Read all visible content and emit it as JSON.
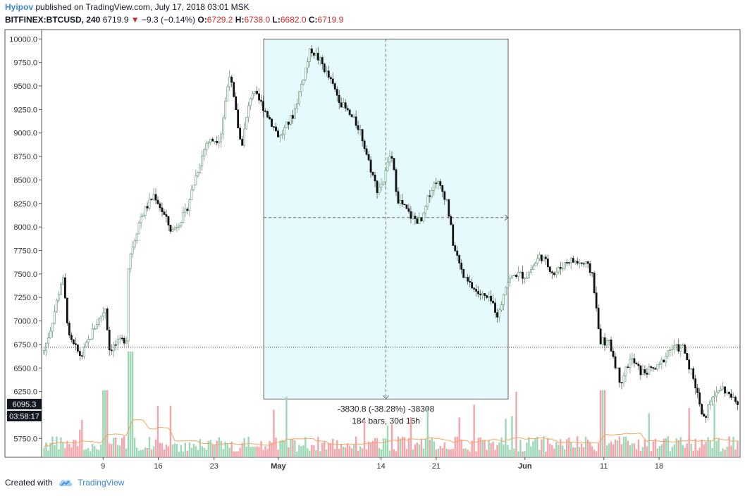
{
  "header": {
    "author": "Hyipov",
    "published_text": "published on TradingView.com, July 17, 2018 03:01 MSK",
    "symbol": "BITFINEX:BTCUSD, 240",
    "last": "6719.9",
    "change_arrow": "▼",
    "change": "−9.3 (−0.14%)",
    "o_label": "O:",
    "o_value": "6729.2",
    "h_label": "H:",
    "h_value": "6738.0",
    "l_label": "L:",
    "l_value": "6682.0",
    "c_label": "C:",
    "c_value": "6719.9"
  },
  "footer": {
    "created_with": "Created with",
    "brand": "TradingView",
    "brand_icon": "tradingview-cloud-icon"
  },
  "colors": {
    "up": "#5a9a6e",
    "down": "#111111",
    "vol_up": "#9ed7b5",
    "vol_down": "#f3a5ab",
    "ma": "#f5a45d",
    "measure_fill": "#e6fafd",
    "axis": "#555555"
  },
  "chart_data": {
    "type": "candlestick",
    "y_range": [
      5550,
      10100
    ],
    "y_ticks": [
      "10000.0",
      "9750.0",
      "9500.0",
      "9250.0",
      "9000.0",
      "8750.0",
      "8500.0",
      "8250.0",
      "8000.0",
      "7750.0",
      "7500.0",
      "7250.0",
      "7000.0",
      "6750.0",
      "6500.0",
      "6250.0",
      "5750.0"
    ],
    "x_ticks": [
      {
        "label": "9",
        "bold": false,
        "pos": 0.088
      },
      {
        "label": "16",
        "bold": false,
        "pos": 0.167
      },
      {
        "label": "23",
        "bold": false,
        "pos": 0.247
      },
      {
        "label": "May",
        "bold": true,
        "pos": 0.339
      },
      {
        "label": "14",
        "bold": false,
        "pos": 0.486
      },
      {
        "label": "21",
        "bold": false,
        "pos": 0.565
      },
      {
        "label": "Jun",
        "bold": true,
        "pos": 0.692
      },
      {
        "label": "11",
        "bold": false,
        "pos": 0.805
      },
      {
        "label": "18",
        "bold": false,
        "pos": 0.884
      }
    ],
    "price_path": [
      [
        0.0,
        6650
      ],
      [
        0.012,
        6950
      ],
      [
        0.028,
        7480
      ],
      [
        0.038,
        6800
      ],
      [
        0.055,
        6620
      ],
      [
        0.075,
        6950
      ],
      [
        0.09,
        7150
      ],
      [
        0.095,
        6700
      ],
      [
        0.12,
        6820
      ],
      [
        0.123,
        7650
      ],
      [
        0.14,
        8100
      ],
      [
        0.16,
        8350
      ],
      [
        0.185,
        7950
      ],
      [
        0.205,
        8150
      ],
      [
        0.22,
        8550
      ],
      [
        0.235,
        8900
      ],
      [
        0.255,
        8950
      ],
      [
        0.268,
        9650
      ],
      [
        0.285,
        8850
      ],
      [
        0.3,
        9450
      ],
      [
        0.315,
        9300
      ],
      [
        0.34,
        8950
      ],
      [
        0.36,
        9200
      ],
      [
        0.385,
        9900
      ],
      [
        0.4,
        9750
      ],
      [
        0.43,
        9300
      ],
      [
        0.455,
        9050
      ],
      [
        0.47,
        8650
      ],
      [
        0.48,
        8400
      ],
      [
        0.49,
        8500
      ],
      [
        0.5,
        8800
      ],
      [
        0.51,
        8300
      ],
      [
        0.53,
        8100
      ],
      [
        0.545,
        8050
      ],
      [
        0.555,
        8350
      ],
      [
        0.565,
        8500
      ],
      [
        0.58,
        8300
      ],
      [
        0.59,
        7800
      ],
      [
        0.605,
        7450
      ],
      [
        0.625,
        7300
      ],
      [
        0.645,
        7200
      ],
      [
        0.655,
        7050
      ],
      [
        0.665,
        7400
      ],
      [
        0.68,
        7500
      ],
      [
        0.695,
        7480
      ],
      [
        0.715,
        7700
      ],
      [
        0.735,
        7500
      ],
      [
        0.755,
        7650
      ],
      [
        0.78,
        7600
      ],
      [
        0.79,
        7500
      ],
      [
        0.8,
        6800
      ],
      [
        0.815,
        6750
      ],
      [
        0.83,
        6350
      ],
      [
        0.845,
        6600
      ],
      [
        0.86,
        6450
      ],
      [
        0.885,
        6500
      ],
      [
        0.9,
        6700
      ],
      [
        0.92,
        6720
      ],
      [
        0.935,
        6400
      ],
      [
        0.95,
        5950
      ],
      [
        0.96,
        6150
      ],
      [
        0.975,
        6300
      ],
      [
        1.0,
        6100
      ]
    ],
    "current_price": 6720,
    "price_label": "6095.3",
    "countdown_label": "03:58:17",
    "measure": {
      "x_start": 0.318,
      "x_end": 0.668,
      "y_top": 10000,
      "y_bottom": 6170,
      "line_y": 8100,
      "label_change": "-3830.8 (-38.28%) -38308",
      "label_bars": "184 bars, 30d 16h"
    }
  }
}
